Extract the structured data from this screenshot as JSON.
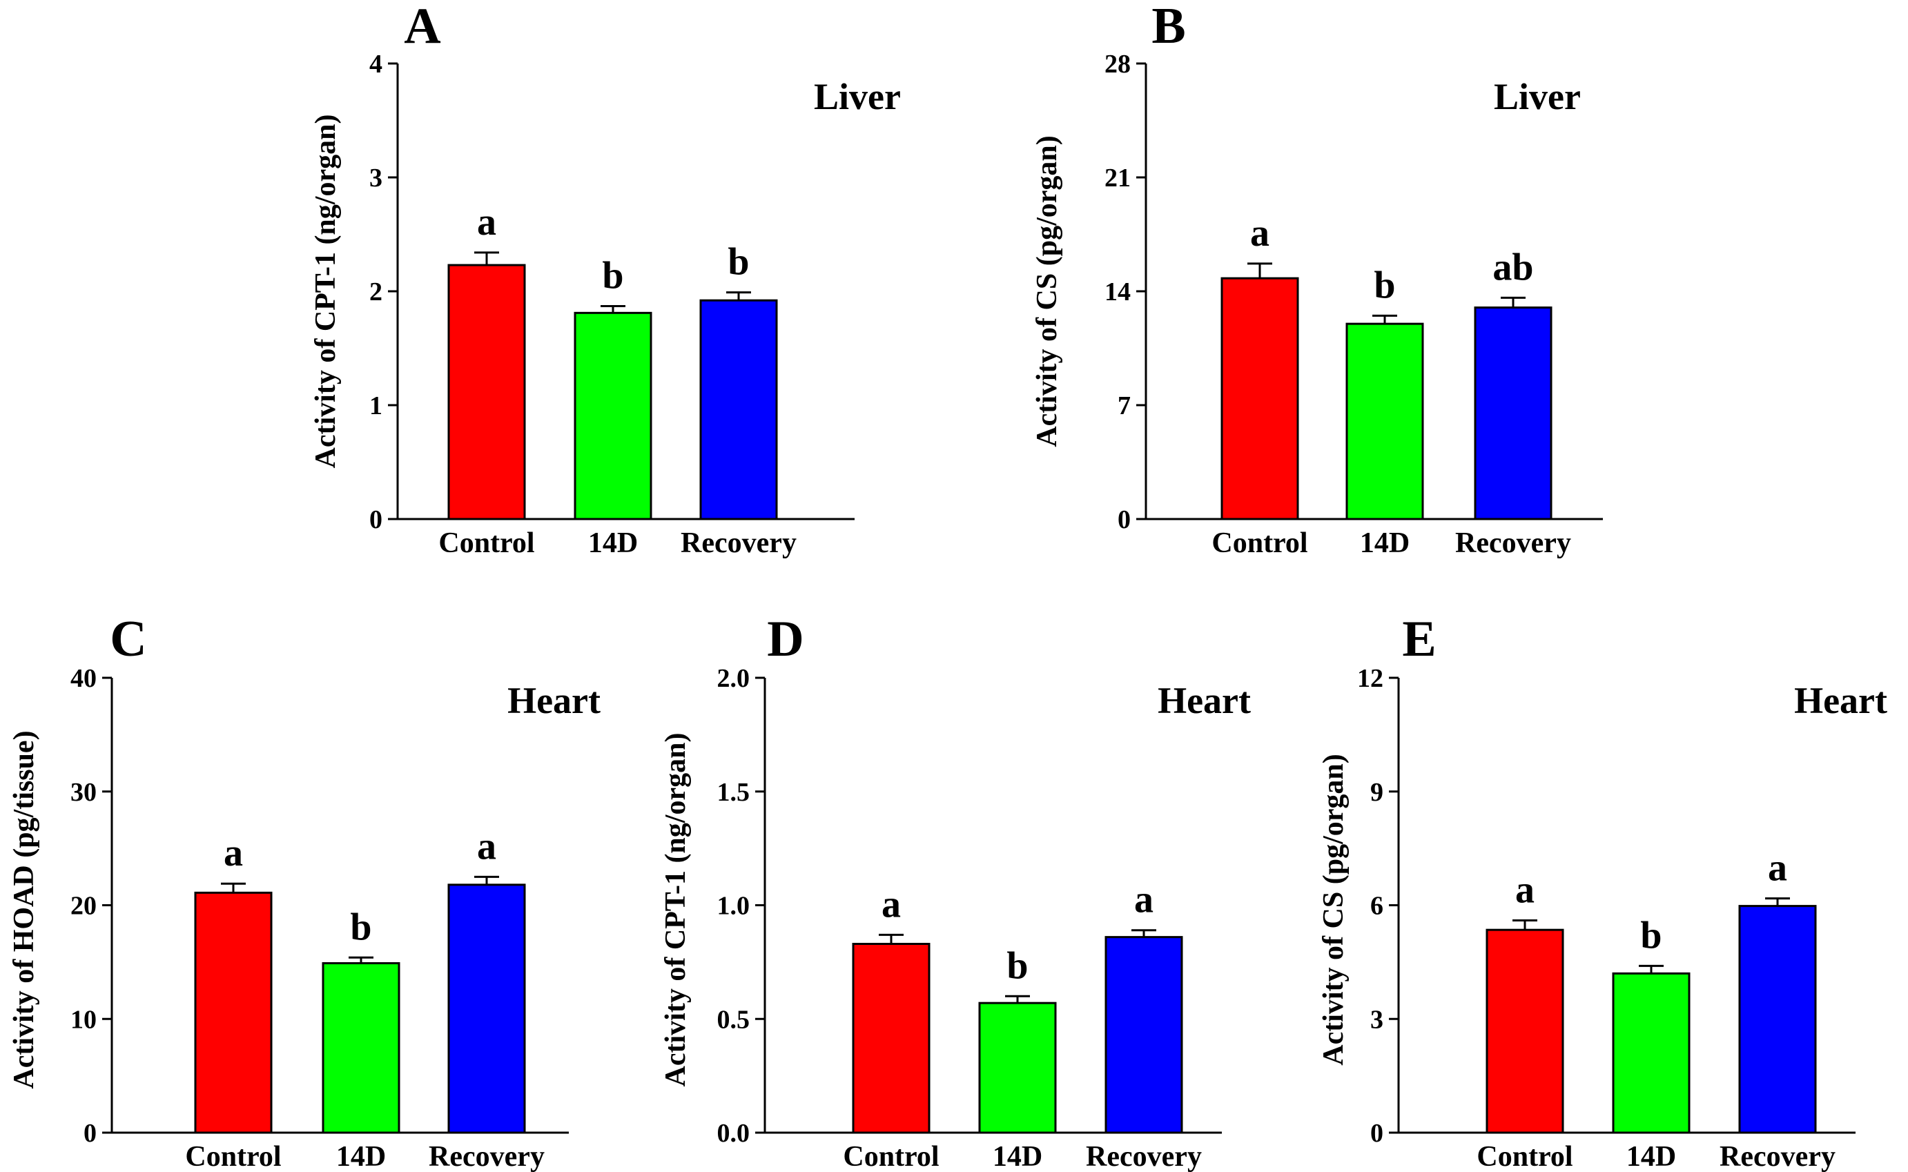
{
  "colors": {
    "control": "#ff0000",
    "14d": "#00ff00",
    "recovery": "#0000ff",
    "axis": "#000000"
  },
  "chart_data": [
    {
      "type": "bar",
      "panel": "A",
      "organ": "Liver",
      "ylabel": "Activity of CPT-1 (ng/organ)",
      "categories": [
        "Control",
        "14D",
        "Recovery"
      ],
      "values": [
        2.23,
        1.81,
        1.92
      ],
      "errors": [
        0.11,
        0.06,
        0.07
      ],
      "significance": [
        "a",
        "b",
        "b"
      ],
      "ylim": [
        0,
        4
      ],
      "yticks": [
        0,
        1,
        2,
        3,
        4
      ],
      "ytick_labels": [
        "0",
        "1",
        "2",
        "3",
        "4"
      ]
    },
    {
      "type": "bar",
      "panel": "B",
      "organ": "Liver",
      "ylabel": "Activity of CS (pg/organ)",
      "categories": [
        "Control",
        "14D",
        "Recovery"
      ],
      "values": [
        14.8,
        12.0,
        13.0
      ],
      "errors": [
        0.9,
        0.5,
        0.6
      ],
      "significance": [
        "a",
        "b",
        "ab"
      ],
      "ylim": [
        0,
        28
      ],
      "yticks": [
        0,
        7,
        14,
        21,
        28
      ],
      "ytick_labels": [
        "0",
        "7",
        "14",
        "21",
        "28"
      ]
    },
    {
      "type": "bar",
      "panel": "C",
      "organ": "Heart",
      "ylabel": "Activity of HOAD (pg/tissue)",
      "categories": [
        "Control",
        "14D",
        "Recovery"
      ],
      "values": [
        21.1,
        14.9,
        21.8
      ],
      "errors": [
        0.8,
        0.5,
        0.7
      ],
      "significance": [
        "a",
        "b",
        "a"
      ],
      "ylim": [
        0,
        40
      ],
      "yticks": [
        0,
        10,
        20,
        30,
        40
      ],
      "ytick_labels": [
        "0",
        "10",
        "20",
        "30",
        "40"
      ]
    },
    {
      "type": "bar",
      "panel": "D",
      "organ": "Heart",
      "ylabel": "Activity of CPT-1 (ng/organ)",
      "categories": [
        "Control",
        "14D",
        "Recovery"
      ],
      "values": [
        0.83,
        0.57,
        0.86
      ],
      "errors": [
        0.04,
        0.03,
        0.03
      ],
      "significance": [
        "a",
        "b",
        "a"
      ],
      "ylim": [
        0,
        2.0
      ],
      "yticks": [
        0,
        0.5,
        1.0,
        1.5,
        2.0
      ],
      "ytick_labels": [
        "0.0",
        "0.5",
        "1.0",
        "1.5",
        "2.0"
      ]
    },
    {
      "type": "bar",
      "panel": "E",
      "organ": "Heart",
      "ylabel": "Activity of CS (pg/organ)",
      "categories": [
        "Control",
        "14D",
        "Recovery"
      ],
      "values": [
        5.35,
        4.2,
        5.98
      ],
      "errors": [
        0.25,
        0.2,
        0.2
      ],
      "significance": [
        "a",
        "b",
        "a"
      ],
      "ylim": [
        0,
        12
      ],
      "yticks": [
        0,
        3,
        6,
        9,
        12
      ],
      "ytick_labels": [
        "0",
        "3",
        "6",
        "9",
        "12"
      ]
    }
  ]
}
